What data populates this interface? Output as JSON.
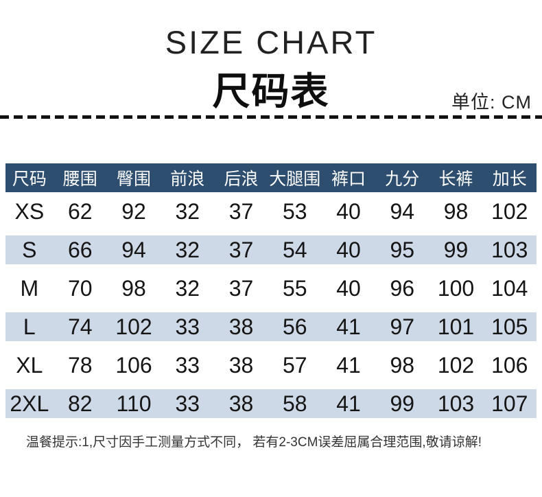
{
  "header": {
    "title_en": "SIZE CHART",
    "title_zh": "尺码表",
    "unit_label": "单位: CM"
  },
  "chart_data": {
    "type": "table",
    "title": "SIZE CHART 尺码表",
    "unit": "CM",
    "columns": [
      "尺码",
      "腰围",
      "臀围",
      "前浪",
      "后浪",
      "大腿围",
      "裤口",
      "九分",
      "长裤",
      "加长"
    ],
    "rows": [
      [
        "XS",
        "62",
        "92",
        "32",
        "37",
        "53",
        "40",
        "94",
        "98",
        "102"
      ],
      [
        "S",
        "66",
        "94",
        "32",
        "37",
        "54",
        "40",
        "95",
        "99",
        "103"
      ],
      [
        "M",
        "70",
        "98",
        "32",
        "37",
        "55",
        "40",
        "96",
        "100",
        "104"
      ],
      [
        "L",
        "74",
        "102",
        "33",
        "38",
        "56",
        "41",
        "97",
        "101",
        "105"
      ],
      [
        "XL",
        "78",
        "106",
        "33",
        "38",
        "57",
        "41",
        "98",
        "102",
        "106"
      ],
      [
        "2XL",
        "82",
        "110",
        "33",
        "38",
        "58",
        "41",
        "99",
        "103",
        "107"
      ]
    ]
  },
  "footnote": "温餐提示:1,尺寸因手工测量方式不同， 若有2-3CM误差屈属合理范围,敬请谅解!",
  "colors": {
    "header_bg": "#2e4e70",
    "stripe_bg": "#cdd9e6",
    "ink": "#1a1a1a"
  }
}
